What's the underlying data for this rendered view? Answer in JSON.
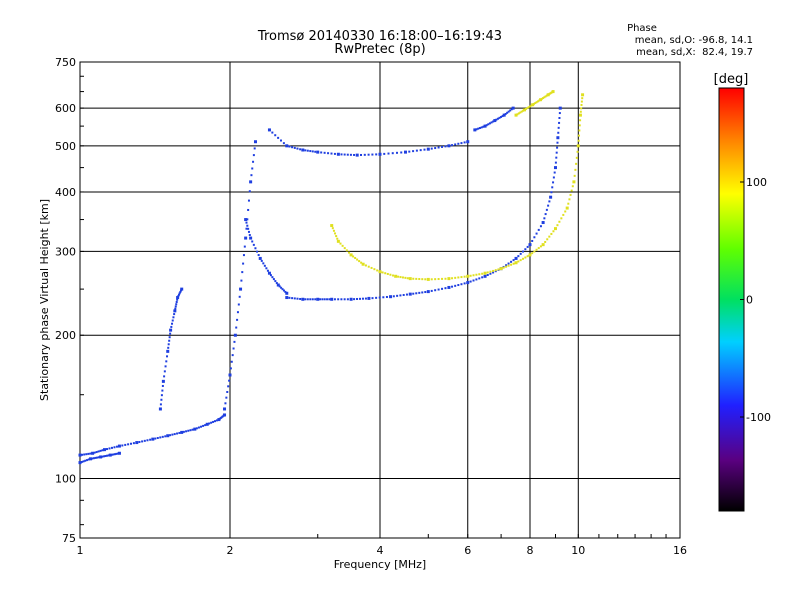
{
  "chart_data": {
    "type": "scatter",
    "title": "Tromsø 20140330 16:18:00–16:19:43",
    "subtitle": "RwPretec (8p)",
    "xlabel": "Frequency [MHz]",
    "ylabel": "Stationary phase Virtual Height [km]",
    "x_scale": "log",
    "y_scale": "log",
    "xlim": [
      1,
      16
    ],
    "ylim": [
      75,
      750
    ],
    "x_ticks": [
      1,
      2,
      4,
      6,
      8,
      10,
      16
    ],
    "y_ticks": [
      75,
      100,
      200,
      300,
      400,
      500,
      600,
      750
    ],
    "x_grid": [
      2,
      4,
      6,
      8,
      10
    ],
    "y_grid": [
      100,
      200,
      300,
      400,
      500,
      600
    ],
    "grid": true,
    "phase_stats": {
      "title": "Phase",
      "line_o": "mean, sd,O: -96.8, 14.1",
      "line_x": "mean, sd,X:  82.4, 19.7"
    },
    "colorbar": {
      "label": "[deg]",
      "range": [
        -180,
        180
      ],
      "ticks": [
        100,
        0,
        -100
      ],
      "tick_labels": [
        "100",
        "0",
        "-100"
      ],
      "placement": "right"
    },
    "series": [
      {
        "mode": "O",
        "phase_mean": -96.8,
        "color": "#1f3fe0",
        "traces": [
          {
            "x": [
              1.0,
              1.06,
              1.12,
              1.2,
              1.3,
              1.4,
              1.5,
              1.6,
              1.7,
              1.8,
              1.9,
              1.95
            ],
            "y": [
              112,
              113,
              115,
              117,
              119,
              121,
              123,
              125,
              127,
              130,
              133,
              136
            ]
          },
          {
            "x": [
              1.0,
              1.05,
              1.1,
              1.15,
              1.2
            ],
            "y": [
              108,
              110,
              111,
              112,
              113
            ]
          },
          {
            "x": [
              1.45,
              1.47,
              1.5,
              1.52,
              1.55,
              1.57,
              1.6
            ],
            "y": [
              140,
              160,
              185,
              205,
              225,
              240,
              250
            ]
          },
          {
            "x": [
              1.95,
              2.0,
              2.05,
              2.1,
              2.15,
              2.2,
              2.25
            ],
            "y": [
              140,
              165,
              200,
              250,
              320,
              420,
              510
            ]
          },
          {
            "x": [
              2.15,
              2.2,
              2.3,
              2.4,
              2.5,
              2.6
            ],
            "y": [
              350,
              320,
              290,
              270,
              255,
              245
            ]
          },
          {
            "x": [
              2.6,
              2.8,
              3.0,
              3.2,
              3.5,
              3.8,
              4.2,
              4.6,
              5.0,
              5.5,
              6.0,
              6.5,
              7.0,
              7.5,
              8.0,
              8.5,
              8.8,
              9.0,
              9.1,
              9.2
            ],
            "y": [
              240,
              238,
              238,
              238,
              238,
              239,
              241,
              244,
              247,
              252,
              258,
              266,
              276,
              290,
              310,
              345,
              390,
              450,
              520,
              600
            ]
          },
          {
            "x": [
              2.4,
              2.6,
              2.8,
              3.0,
              3.3,
              3.6,
              4.0,
              4.5,
              5.0,
              5.5,
              6.0
            ],
            "y": [
              540,
              500,
              490,
              485,
              480,
              478,
              480,
              485,
              492,
              500,
              510
            ]
          },
          {
            "x": [
              6.2,
              6.5,
              6.8,
              7.1,
              7.4
            ],
            "y": [
              540,
              550,
              565,
              580,
              600
            ]
          }
        ]
      },
      {
        "mode": "X",
        "phase_mean": 82.4,
        "color": "#e0e020",
        "traces": [
          {
            "x": [
              3.2,
              3.3,
              3.5,
              3.7,
              4.0,
              4.3,
              4.6,
              5.0,
              5.5,
              6.0,
              6.5,
              7.0,
              7.5,
              8.0,
              8.5,
              9.0,
              9.5,
              9.8,
              10.0,
              10.1,
              10.2
            ],
            "y": [
              340,
              315,
              295,
              282,
              272,
              266,
              263,
              262,
              263,
              266,
              270,
              276,
              284,
              295,
              310,
              335,
              370,
              420,
              500,
              580,
              640
            ]
          },
          {
            "x": [
              7.5,
              7.8,
              8.1,
              8.4,
              8.7,
              8.9
            ],
            "y": [
              580,
              595,
              610,
              625,
              640,
              650
            ]
          }
        ]
      }
    ]
  }
}
